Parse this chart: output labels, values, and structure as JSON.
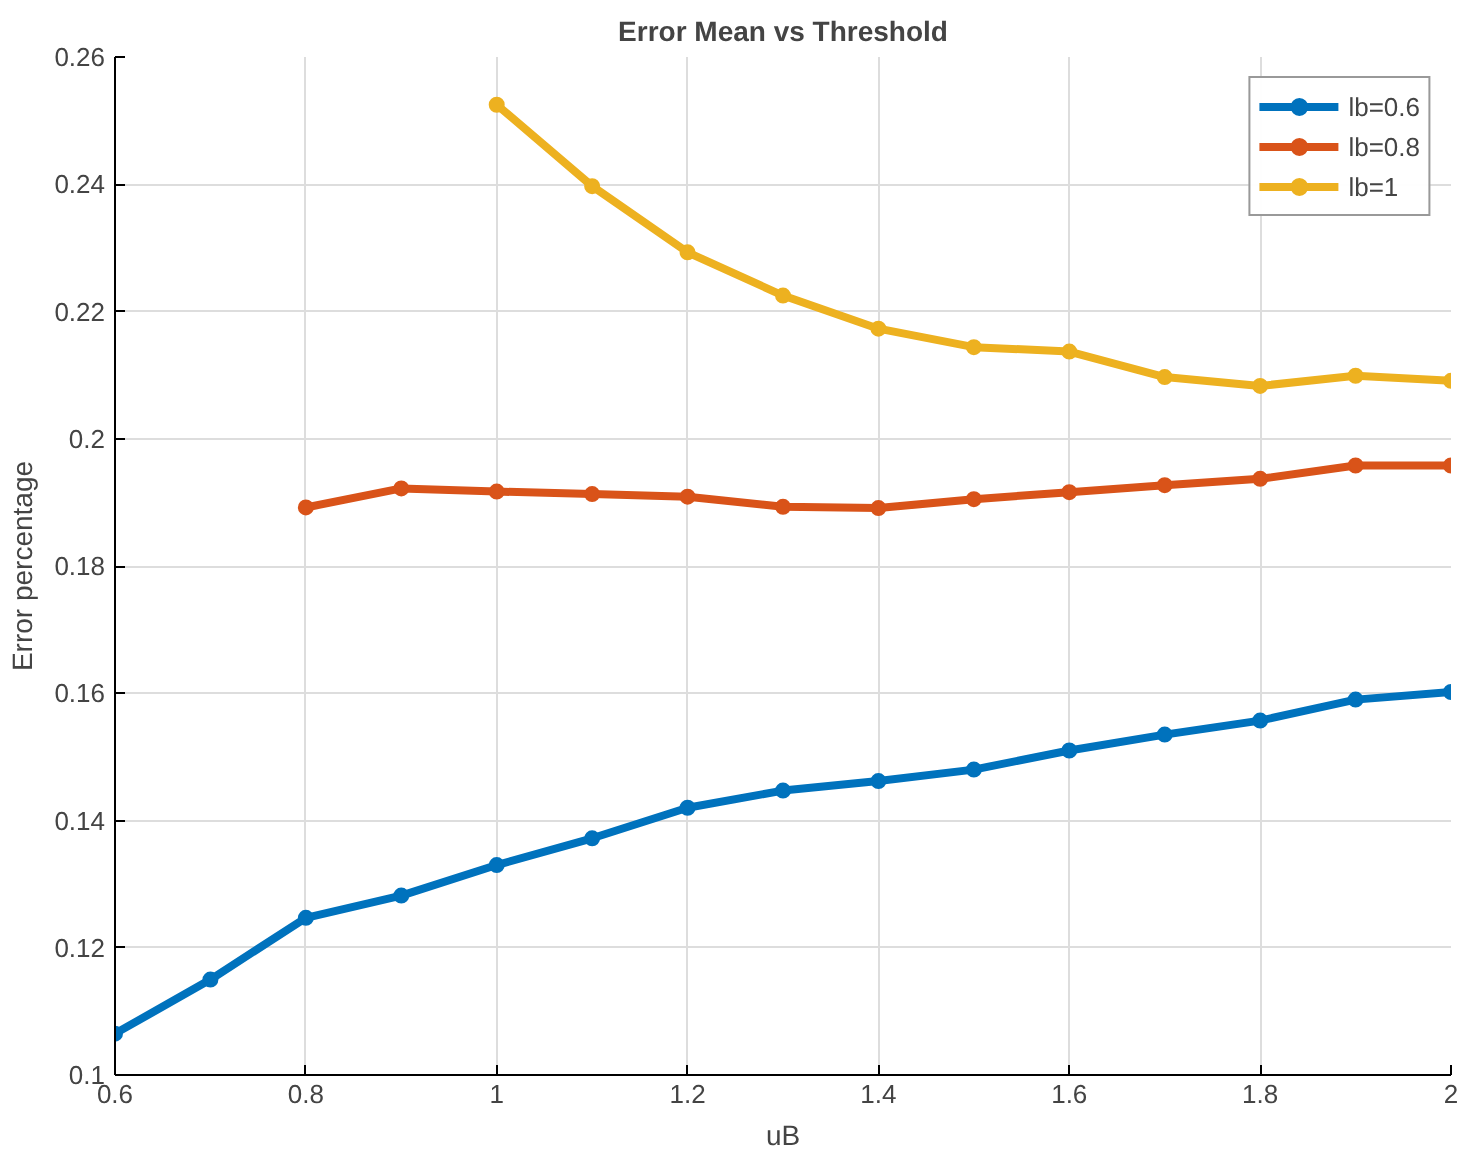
{
  "chart_data": {
    "type": "line",
    "title": "Error Mean vs Threshold",
    "xlabel": "uB",
    "ylabel": "Error percentage",
    "xlim": [
      0.6,
      2
    ],
    "ylim": [
      0.1,
      0.26
    ],
    "xticks": [
      0.6,
      0.8,
      1,
      1.2,
      1.4,
      1.6,
      1.8,
      2
    ],
    "yticks": [
      0.1,
      0.12,
      0.14,
      0.16,
      0.18,
      0.2,
      0.22,
      0.24,
      0.26
    ],
    "grid": true,
    "legend": "top right",
    "marker": "circle",
    "line_style": "solid",
    "series": [
      {
        "name": "lb=0.6",
        "color": "#0072bd",
        "x": [
          0.6,
          0.7,
          0.8,
          0.9,
          1.0,
          1.1,
          1.2,
          1.3,
          1.4,
          1.5,
          1.6,
          1.7,
          1.8,
          1.9,
          2.0
        ],
        "values": [
          0.1065,
          0.115,
          0.1247,
          0.1282,
          0.133,
          0.1372,
          0.142,
          0.1447,
          0.1462,
          0.148,
          0.151,
          0.1535,
          0.1557,
          0.159,
          0.1602
        ]
      },
      {
        "name": "lb=0.8",
        "color": "#d95319",
        "x": [
          0.8,
          0.9,
          1.0,
          1.1,
          1.2,
          1.3,
          1.4,
          1.5,
          1.6,
          1.7,
          1.8,
          1.9,
          2.0
        ],
        "values": [
          0.1892,
          0.1922,
          0.1917,
          0.1913,
          0.1909,
          0.1893,
          0.1891,
          0.1905,
          0.1916,
          0.1927,
          0.1937,
          0.1958,
          0.1958
        ]
      },
      {
        "name": "lb=1",
        "color": "#edb120",
        "x": [
          1.0,
          1.1,
          1.2,
          1.3,
          1.4,
          1.5,
          1.6,
          1.7,
          1.8,
          1.9,
          2.0
        ],
        "values": [
          0.2525,
          0.2397,
          0.2293,
          0.2225,
          0.2173,
          0.2144,
          0.2137,
          0.2097,
          0.2083,
          0.2099,
          0.2091
        ]
      }
    ]
  }
}
